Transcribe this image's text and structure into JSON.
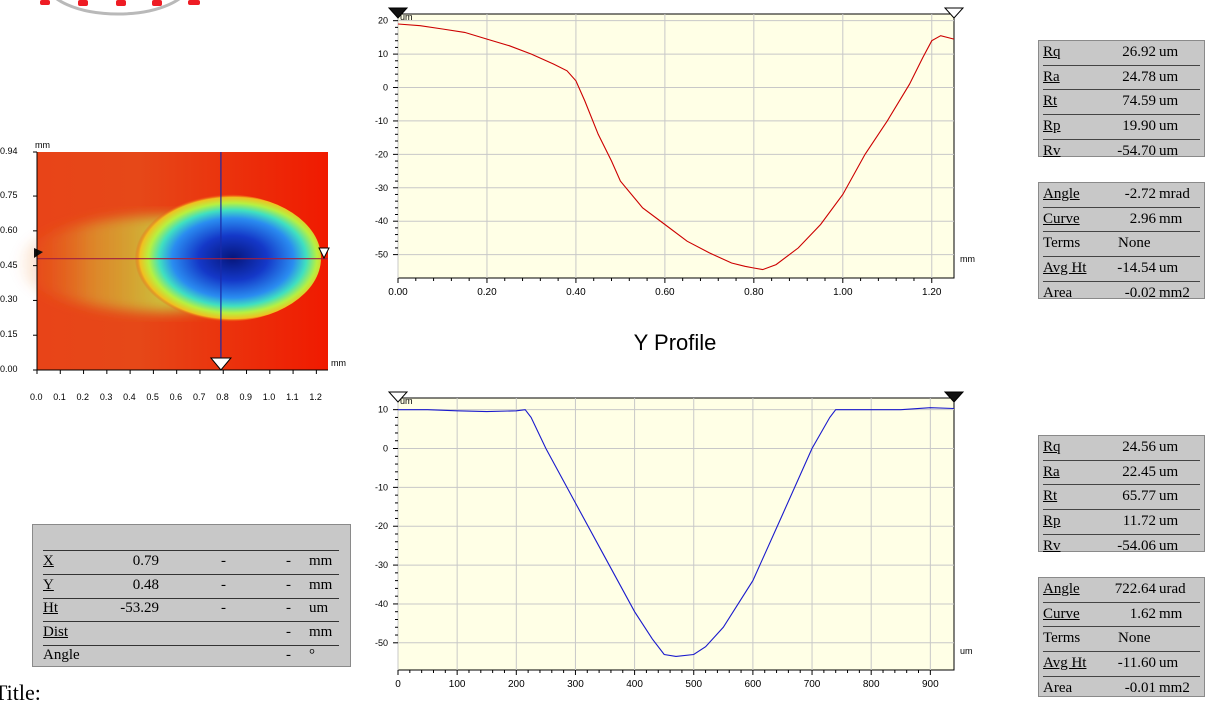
{
  "footer": {
    "title_label": "Title:"
  },
  "heatmap": {
    "y_unit": "mm",
    "x_unit": "mm",
    "y_ticks": [
      "0.94",
      "0.75",
      "0.60",
      "0.45",
      "0.30",
      "0.15",
      "0.00"
    ],
    "x_ticks": [
      "0.0",
      "0.1",
      "0.2",
      "0.3",
      "0.4",
      "0.5",
      "0.6",
      "0.7",
      "0.8",
      "0.9",
      "1.0",
      "1.1",
      "1.2"
    ],
    "cursor_x_mm": 0.79,
    "cursor_y_mm": 0.48,
    "colors": {
      "background": "#ee2200",
      "deep": "#08208a",
      "mid": "#2a7ff0",
      "ring": "#88ee44"
    }
  },
  "chart_data": [
    {
      "type": "line",
      "title": "",
      "xlabel": "mm",
      "ylabel": "um",
      "xlim": [
        0,
        1.25
      ],
      "ylim": [
        -57,
        22
      ],
      "x_ticks": [
        "0.00",
        "0.20",
        "0.40",
        "0.60",
        "0.80",
        "1.00",
        "1.20"
      ],
      "y_ticks": [
        "20",
        "10",
        "0",
        "-10",
        "-20",
        "-30",
        "-40",
        "-50"
      ],
      "grid": true,
      "color": "#cc0000",
      "series": [
        {
          "x": [
            0,
            0.05,
            0.1,
            0.15,
            0.2,
            0.25,
            0.3,
            0.35,
            0.38,
            0.4,
            0.42,
            0.45,
            0.48,
            0.5,
            0.55,
            0.6,
            0.65,
            0.7,
            0.75,
            0.78,
            0.8,
            0.82,
            0.85,
            0.9,
            0.95,
            1.0,
            1.05,
            1.1,
            1.15,
            1.18,
            1.2,
            1.22,
            1.25
          ],
          "y": [
            19,
            18.5,
            17.5,
            16.5,
            14.5,
            12.5,
            10,
            7,
            5,
            2,
            -4,
            -14,
            -22,
            -28,
            -36,
            -41,
            -46,
            -49.5,
            -52.5,
            -53.5,
            -54,
            -54.5,
            -53,
            -48,
            -41,
            -32,
            -20,
            -10,
            1,
            9,
            14,
            15.5,
            14.5
          ]
        }
      ]
    },
    {
      "type": "line",
      "title": "Y Profile",
      "xlabel": "um",
      "ylabel": "um",
      "xlim": [
        0,
        940
      ],
      "ylim": [
        -57,
        13
      ],
      "x_ticks": [
        "0",
        "100",
        "200",
        "300",
        "400",
        "500",
        "600",
        "700",
        "800",
        "900"
      ],
      "y_ticks": [
        "10",
        "0",
        "-10",
        "-20",
        "-30",
        "-40",
        "-50"
      ],
      "grid": true,
      "color": "#1a1acc",
      "series": [
        {
          "x": [
            0,
            50,
            100,
            150,
            200,
            215,
            225,
            250,
            300,
            350,
            400,
            430,
            450,
            470,
            500,
            520,
            550,
            600,
            650,
            700,
            730,
            740,
            760,
            800,
            850,
            900,
            940
          ],
          "y": [
            10,
            10,
            9.7,
            9.5,
            9.7,
            10,
            8,
            0,
            -14,
            -28,
            -42,
            -49,
            -53,
            -53.5,
            -53,
            -51,
            -46,
            -34,
            -17,
            0,
            8,
            10,
            10,
            10,
            10,
            10.5,
            10.3
          ]
        }
      ]
    }
  ],
  "top_stats": {
    "rows": [
      {
        "name": "Rq",
        "value": "26.92",
        "unit": "um"
      },
      {
        "name": "Ra",
        "value": "24.78",
        "unit": "um"
      },
      {
        "name": "Rt",
        "value": "74.59",
        "unit": "um"
      },
      {
        "name": "Rp",
        "value": "19.90",
        "unit": "um"
      },
      {
        "name": "Rv",
        "value": "-54.70",
        "unit": "um"
      }
    ]
  },
  "top_form": {
    "rows": [
      {
        "name": "Angle",
        "value": "-2.72",
        "unit": "mrad"
      },
      {
        "name": "Curve",
        "value": "2.96",
        "unit": "mm"
      },
      {
        "name": "Terms",
        "value": "None",
        "unit": ""
      },
      {
        "name": "Avg Ht",
        "value": "-14.54",
        "unit": "um"
      },
      {
        "name": "Area",
        "value": "-0.02",
        "unit": "mm2"
      }
    ]
  },
  "bottom_stats": {
    "rows": [
      {
        "name": "Rq",
        "value": "24.56",
        "unit": "um"
      },
      {
        "name": "Ra",
        "value": "22.45",
        "unit": "um"
      },
      {
        "name": "Rt",
        "value": "65.77",
        "unit": "um"
      },
      {
        "name": "Rp",
        "value": "11.72",
        "unit": "um"
      },
      {
        "name": "Rv",
        "value": "-54.06",
        "unit": "um"
      }
    ]
  },
  "bottom_form": {
    "rows": [
      {
        "name": "Angle",
        "value": "722.64",
        "unit": "urad"
      },
      {
        "name": "Curve",
        "value": "1.62",
        "unit": "mm"
      },
      {
        "name": "Terms",
        "value": "None",
        "unit": ""
      },
      {
        "name": "Avg Ht",
        "value": "-11.60",
        "unit": "um"
      },
      {
        "name": "Area",
        "value": "-0.01",
        "unit": "mm2"
      }
    ]
  },
  "cursor": {
    "rows": [
      {
        "name": "X",
        "v1": "0.79",
        "v2": "-",
        "v3": "-",
        "unit": "mm"
      },
      {
        "name": "Y",
        "v1": "0.48",
        "v2": "-",
        "v3": "-",
        "unit": "mm"
      },
      {
        "name": "Ht",
        "v1": "-53.29",
        "v2": "-",
        "v3": "-",
        "unit": "um"
      },
      {
        "name": "Dist",
        "v1": "",
        "v2": "",
        "v3": "-",
        "unit": "mm"
      },
      {
        "name": "Angle",
        "v1": "",
        "v2": "",
        "v3": "-",
        "unit": "°"
      }
    ]
  }
}
